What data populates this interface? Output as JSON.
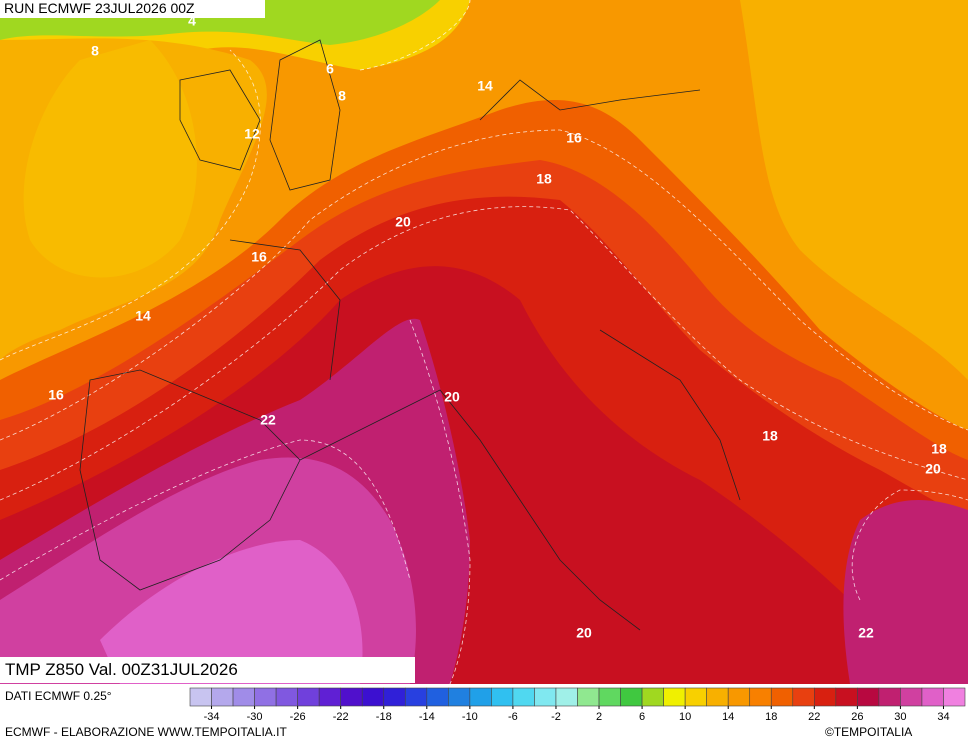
{
  "header": {
    "run": "RUN ECMWF 23JUL2026 00Z"
  },
  "title": "TMP Z850 Val. 00Z31JUL2026",
  "contour_labels": [
    4,
    8,
    6,
    8,
    14,
    12,
    16,
    18,
    20,
    16,
    14,
    16,
    20,
    22,
    18,
    18,
    20,
    20,
    22
  ],
  "colorbar": {
    "label": "DATI ECMWF 0.25°",
    "range": [
      -36,
      36
    ],
    "ticks": [
      -34,
      -30,
      -26,
      -22,
      -18,
      -14,
      -10,
      -6,
      -2,
      2,
      6,
      10,
      14,
      18,
      22,
      26,
      30,
      34
    ],
    "colors": [
      "#c8c4f0",
      "#b4a8ec",
      "#a08ce8",
      "#9070e4",
      "#8058e0",
      "#7040dc",
      "#6020d4",
      "#5010cc",
      "#3c10d0",
      "#3020d8",
      "#2840e0",
      "#2060e0",
      "#2080e0",
      "#20a0e8",
      "#30c0f0",
      "#50d8f0",
      "#80e8f0",
      "#a0f0e8",
      "#90e890",
      "#60d860",
      "#40c840",
      "#a0d820",
      "#f0f000",
      "#f8d000",
      "#f8b000",
      "#f89800",
      "#f88000",
      "#f06000",
      "#e84010",
      "#d82010",
      "#c81020",
      "#b80840",
      "#c02070",
      "#d040a0",
      "#e060c8",
      "#f080e0"
    ]
  },
  "footer": {
    "credit": "ECMWF - ELABORAZIONE WWW.TEMPOITALIA.IT",
    "copyright": "©TEMPOITALIA"
  }
}
